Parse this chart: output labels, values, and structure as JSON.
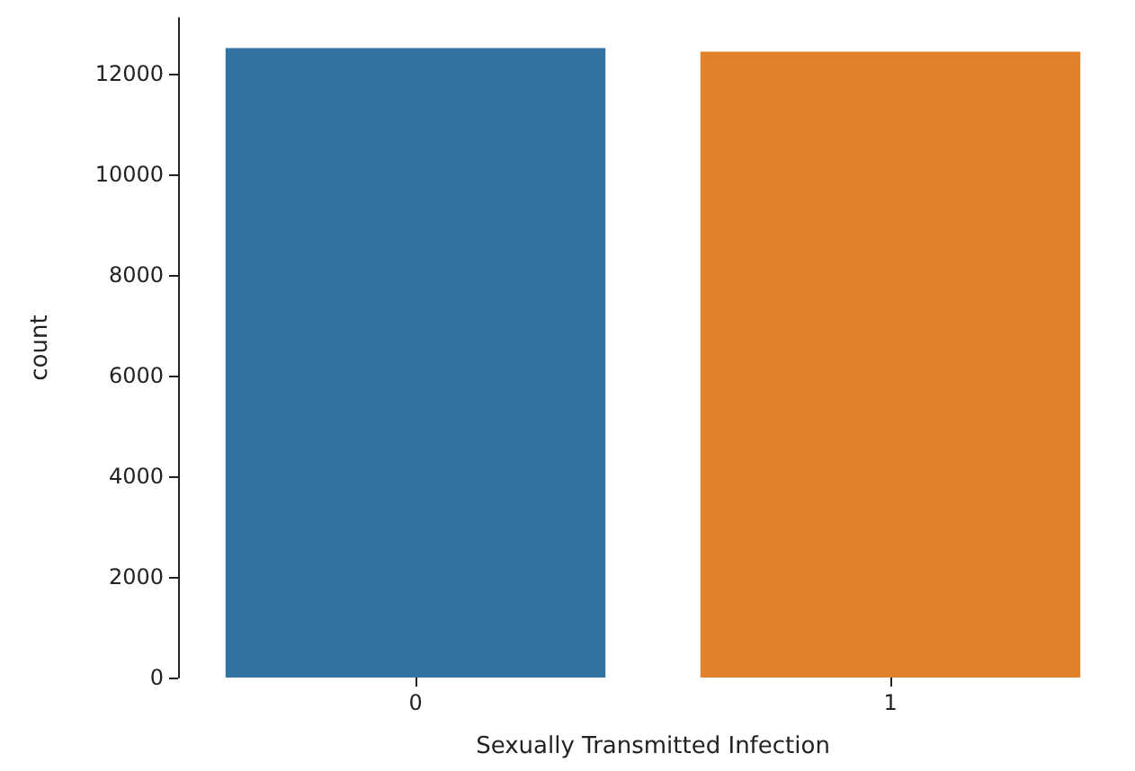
{
  "chart_data": {
    "type": "bar",
    "xlabel": "Sexually Transmitted Infection",
    "ylabel": "count",
    "categories": [
      "0",
      "1"
    ],
    "series": [
      {
        "values": [
          12500,
          12430
        ],
        "colors": [
          "#3274a1",
          "#e1812c"
        ]
      }
    ],
    "ylim": [
      0,
      13100
    ],
    "yticks": [
      0,
      2000,
      4000,
      6000,
      8000,
      10000,
      12000
    ],
    "grid": false
  }
}
